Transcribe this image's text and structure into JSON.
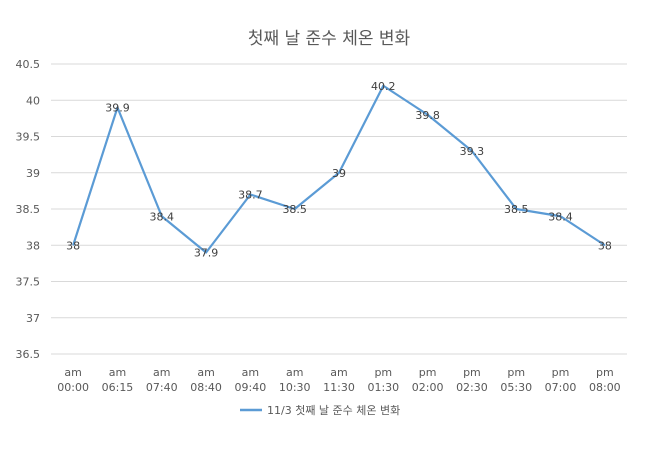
{
  "chart_data": {
    "type": "line",
    "title": "첫째 날 준수 체온 변화",
    "xlabel": "",
    "ylabel": "",
    "categories": [
      [
        "am",
        "00:00"
      ],
      [
        "am",
        "06:15"
      ],
      [
        "am",
        "07:40"
      ],
      [
        "am",
        "08:40"
      ],
      [
        "am",
        "09:40"
      ],
      [
        "am",
        "10:30"
      ],
      [
        "am",
        "11:30"
      ],
      [
        "pm",
        "01:30"
      ],
      [
        "pm",
        "02:00"
      ],
      [
        "pm",
        "02:30"
      ],
      [
        "pm",
        "05:30"
      ],
      [
        "pm",
        "07:00"
      ],
      [
        "pm",
        "08:00"
      ]
    ],
    "series": [
      {
        "name": "11/3 첫째 날 준수 체온 변화",
        "color": "#5B9BD5",
        "values": [
          38,
          39.9,
          38.4,
          37.9,
          38.7,
          38.5,
          39,
          40.2,
          39.8,
          39.3,
          38.5,
          38.4,
          38
        ]
      }
    ],
    "ylim": [
      36.5,
      40.5
    ],
    "yticks": [
      36.5,
      37,
      37.5,
      38,
      38.5,
      39,
      39.5,
      40,
      40.5
    ],
    "grid": true,
    "data_labels": true,
    "legend": "bottom"
  }
}
